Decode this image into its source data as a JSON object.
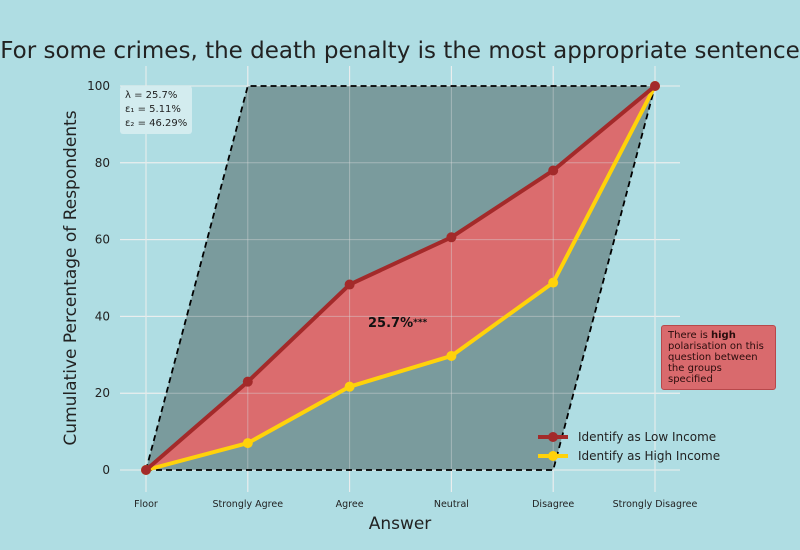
{
  "chart_data": {
    "type": "line",
    "title": "'For some crimes, the death penalty is the most appropriate sentence'",
    "xlabel": "Answer",
    "ylabel": "Cumulative Percentage of Respondents",
    "categories": [
      "Floor",
      "Strongly Agree",
      "Agree",
      "Neutral",
      "Disagree",
      "Strongly Disagree"
    ],
    "ylim": [
      0,
      100
    ],
    "yticks": [
      0,
      20,
      40,
      60,
      80,
      100
    ],
    "grid": true,
    "legend_position": "bottom-right",
    "series": [
      {
        "name": "Identify as Low Income",
        "color": "#a32a2a",
        "values": [
          0,
          23,
          48.3,
          60.6,
          78,
          100
        ]
      },
      {
        "name": "Identify as High Income",
        "color": "#ffd20a",
        "values": [
          0,
          7,
          21.7,
          29.7,
          48.8,
          100
        ]
      }
    ],
    "bounds_polygon": {
      "upper": [
        0,
        100,
        100,
        100,
        100,
        100
      ],
      "lower": [
        0,
        0,
        0,
        0,
        0,
        100
      ]
    },
    "fill_between_color": "#e0696c",
    "bounds_fill_color": "#7a9b9d",
    "center_annotation": {
      "value": "25.7%",
      "stars": "***"
    },
    "stats": {
      "lambda": "λ = 25.7%",
      "eps1": "ε₁ = 5.11%",
      "eps2": "ε₂ = 46.29%"
    },
    "note": {
      "prefix": "There is ",
      "emphasis": "high",
      "suffix": "polarisation on this question between the groups specified"
    }
  }
}
